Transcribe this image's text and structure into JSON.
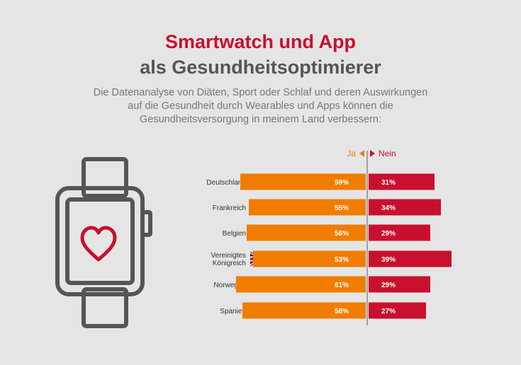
{
  "title": {
    "line1": "Smartwatch und App",
    "line2": "als Gesundheitsoptimierer"
  },
  "subtitle": [
    "Die Datenanalyse von Diäten, Sport oder Schlaf und deren Auswirkungen",
    "auf die Gesundheit durch Wearables und Apps können die",
    "Gesundheitsversorgung in meinem Land verbessern:"
  ],
  "colors": {
    "title_red": "#c8102e",
    "title_gray": "#555555",
    "ja": "#f07d00",
    "nein": "#c8102e",
    "icon": "#555555",
    "heart": "#c8102e"
  },
  "icons": {
    "watch": "smartwatch-heart-icon"
  },
  "chart_data": {
    "type": "bar",
    "orientation": "horizontal-diverging",
    "categories": [
      "Deutschland",
      "Frankreich",
      "Belgien",
      "Vereinigtes Königreich",
      "Norwegen",
      "Spanien"
    ],
    "category_lines": [
      [
        "Deutschland"
      ],
      [
        "Frankreich"
      ],
      [
        "Belgien"
      ],
      [
        "Vereinigtes",
        "Königreich"
      ],
      [
        "Norwegen"
      ],
      [
        "Spanien"
      ]
    ],
    "flags": [
      "germany-flag-icon",
      "france-flag-icon",
      "belgium-flag-icon",
      "uk-flag-icon",
      "norway-flag-icon",
      "spain-flag-icon"
    ],
    "series": [
      {
        "name": "Ja",
        "values": [
          59,
          55,
          56,
          53,
          61,
          58
        ],
        "labels": [
          "59%",
          "55%",
          "56%",
          "53%",
          "61%",
          "58%"
        ],
        "color": "#f07d00"
      },
      {
        "name": "Nein",
        "values": [
          31,
          34,
          29,
          39,
          29,
          27
        ],
        "labels": [
          "31%",
          "34%",
          "29%",
          "39%",
          "29%",
          "27%"
        ],
        "color": "#c8102e"
      }
    ],
    "legend": [
      "Ja",
      "Nein"
    ],
    "legend_placement": "top-center",
    "unit": "%",
    "grid": false
  }
}
